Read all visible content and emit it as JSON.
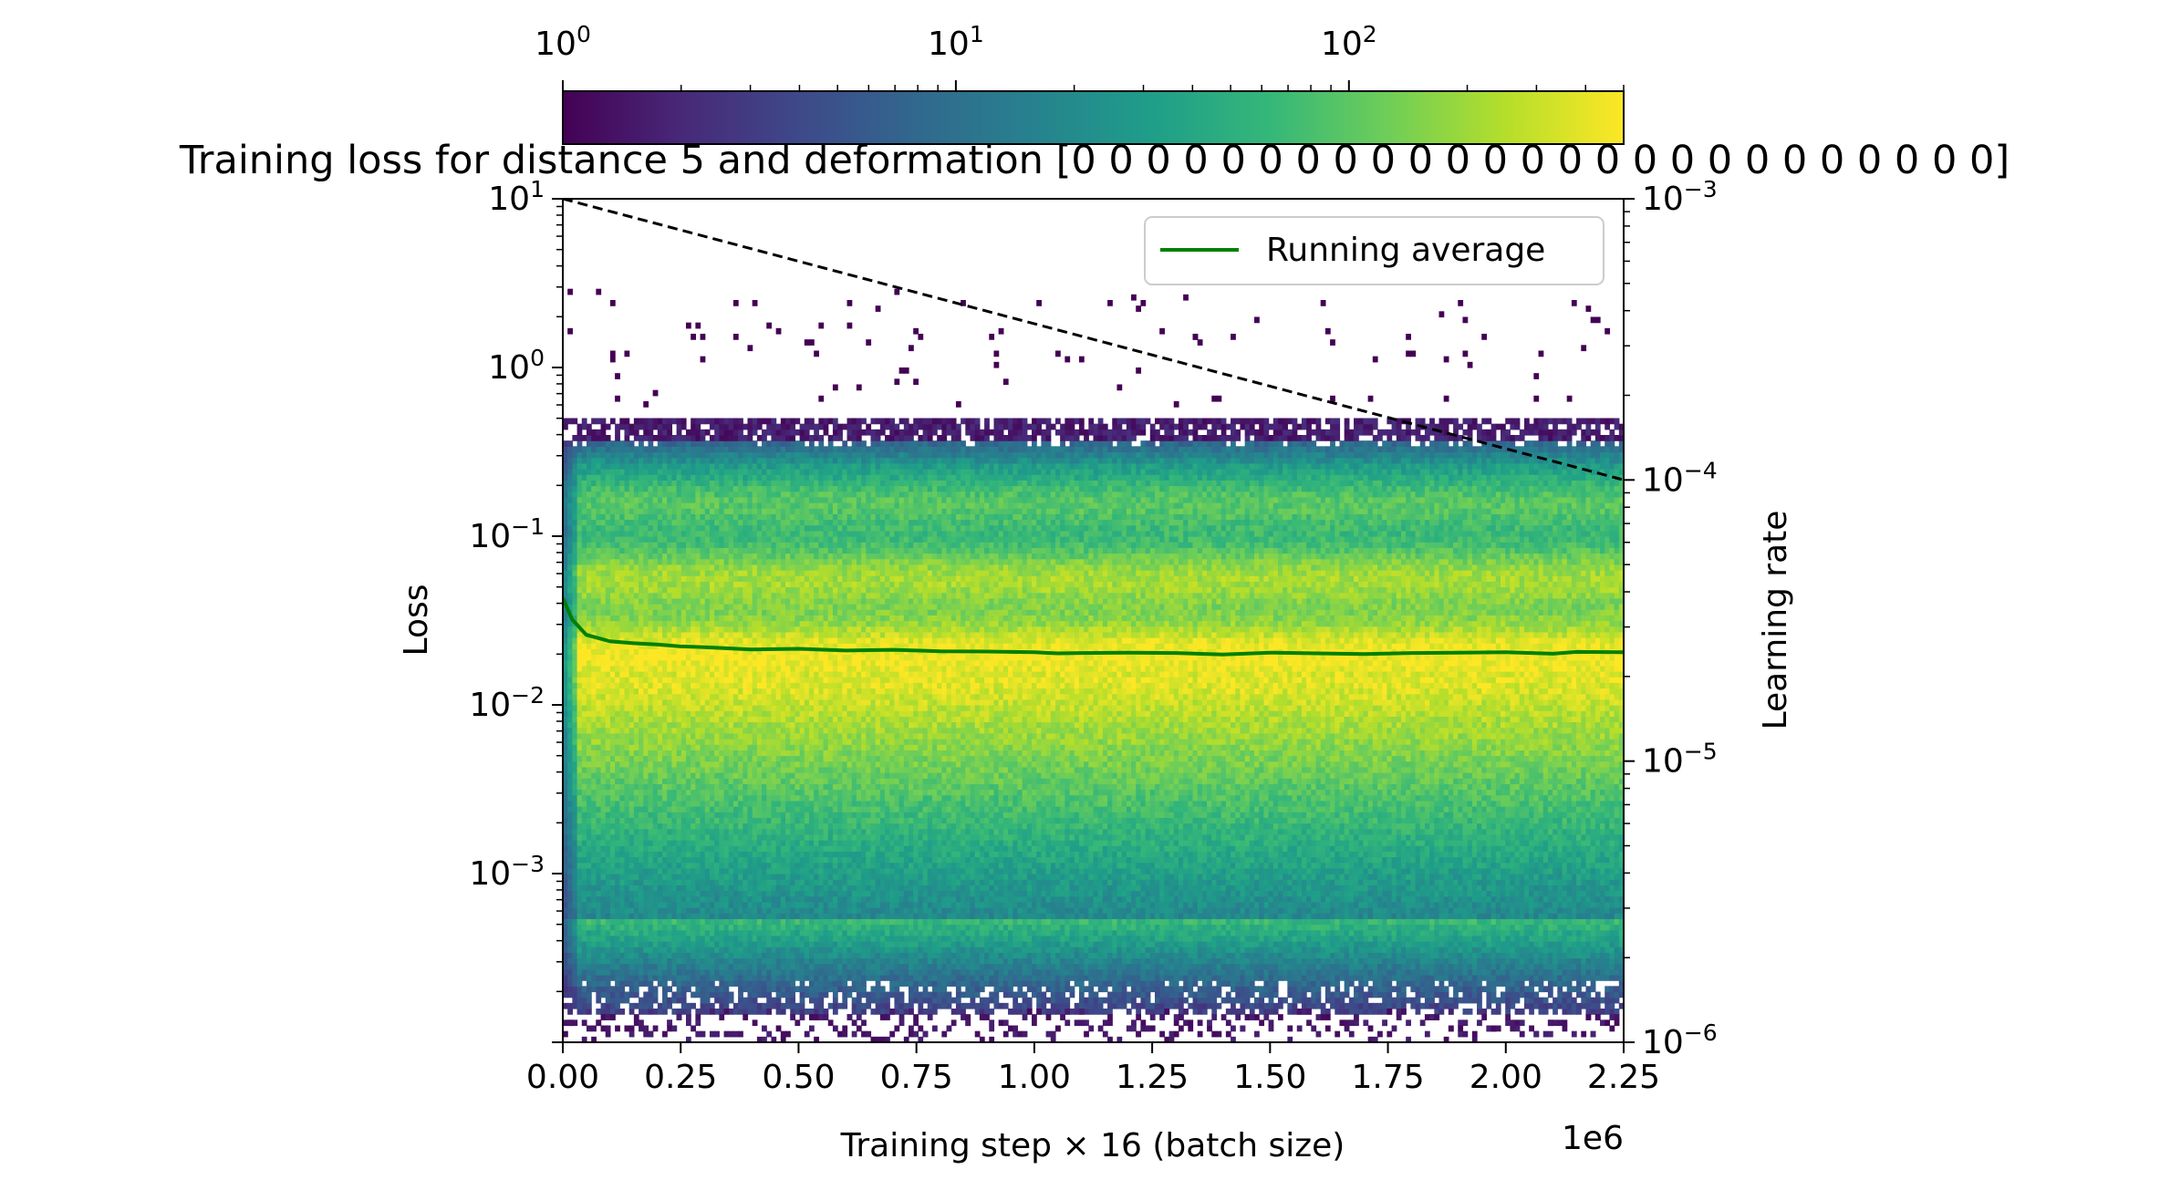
{
  "chart_data": {
    "type": "heatmap",
    "title": "Training loss for distance 5 and deformation [0 0 0 0 0 0 0 0 0 0 0 0 0 0 0 0 0 0 0 0 0 0 0 0 0]",
    "xlabel": "Training step × 16 (batch size)",
    "ylabel": "Loss",
    "y2label": "Learning rate",
    "x_offset_label": "1e6",
    "xlim": [
      0,
      2250000
    ],
    "ylim": [
      0.0001,
      10
    ],
    "y2lim": [
      1e-06,
      0.001
    ],
    "yscale": "log",
    "y2scale": "log",
    "x_ticks": [
      0,
      250000,
      500000,
      750000,
      1000000,
      1250000,
      1500000,
      1750000,
      2000000,
      2250000
    ],
    "x_tick_labels": [
      "0.00",
      "0.25",
      "0.50",
      "0.75",
      "1.00",
      "1.25",
      "1.50",
      "1.75",
      "2.00",
      "2.25"
    ],
    "y_ticks": [
      {
        "value": 10,
        "base": "10",
        "exp": "1"
      },
      {
        "value": 1,
        "base": "10",
        "exp": "0"
      },
      {
        "value": 0.1,
        "base": "10",
        "exp": "−1"
      },
      {
        "value": 0.01,
        "base": "10",
        "exp": "−2"
      },
      {
        "value": 0.001,
        "base": "10",
        "exp": "−3"
      }
    ],
    "y2_ticks": [
      {
        "value": 0.001,
        "base": "10",
        "exp": "−3"
      },
      {
        "value": 0.0001,
        "base": "10",
        "exp": "−4"
      },
      {
        "value": 1e-05,
        "base": "10",
        "exp": "−5"
      },
      {
        "value": 1e-06,
        "base": "10",
        "exp": "−6"
      }
    ],
    "colorbar": {
      "colormap": "viridis",
      "scale": "log",
      "range": [
        1,
        500
      ],
      "ticks": [
        {
          "value": 1,
          "base": "10",
          "exp": "0"
        },
        {
          "value": 10,
          "base": "10",
          "exp": "1"
        },
        {
          "value": 100,
          "base": "10",
          "exp": "2"
        }
      ],
      "colors": [
        "#440154",
        "#482878",
        "#3e4989",
        "#31688e",
        "#26828e",
        "#1f9e89",
        "#35b779",
        "#6ece58",
        "#b5de2b",
        "#fde725"
      ]
    },
    "heatmap": {
      "x_bins": 224,
      "y_bins": 150,
      "band_loss_range": [
        0.00015,
        0.45
      ],
      "peak_loss": 0.015,
      "stray_points_loss_range": [
        0.6,
        3.0
      ]
    },
    "series": [
      {
        "name": "Running average",
        "color": "#008000",
        "style": "solid",
        "x": [
          0,
          20000,
          50000,
          100000,
          150000,
          200000,
          250000,
          300000,
          400000,
          500000,
          600000,
          700000,
          800000,
          900000,
          1000000,
          1050000,
          1100000,
          1200000,
          1300000,
          1400000,
          1500000,
          1600000,
          1700000,
          1800000,
          1900000,
          2000000,
          2100000,
          2150000,
          2250000
        ],
        "y": [
          0.043,
          0.032,
          0.026,
          0.0238,
          0.0232,
          0.0228,
          0.0222,
          0.022,
          0.0213,
          0.0215,
          0.021,
          0.0212,
          0.0208,
          0.0207,
          0.0205,
          0.0202,
          0.0203,
          0.0204,
          0.0203,
          0.0199,
          0.0204,
          0.0202,
          0.02,
          0.0203,
          0.0204,
          0.0205,
          0.0201,
          0.0206,
          0.0205
        ]
      },
      {
        "name": "",
        "axis": "y2",
        "color": "#000000",
        "style": "dashed",
        "x": [
          0,
          2250000
        ],
        "y": [
          0.001,
          0.0001
        ]
      }
    ],
    "legend": {
      "entries": [
        "Running average"
      ],
      "placement": "top-right"
    }
  }
}
